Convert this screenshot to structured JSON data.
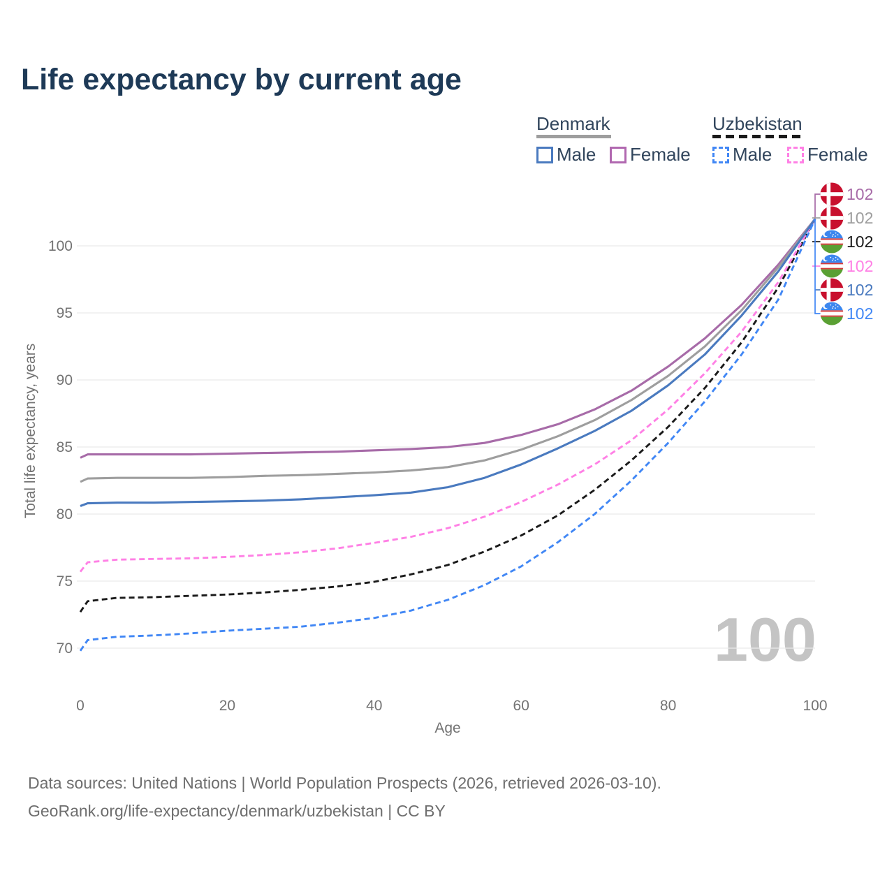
{
  "title": "Life expectancy by current age",
  "legend": {
    "groups": [
      {
        "name": "Denmark",
        "line_style": "solid",
        "line_color": "#9e9e9e",
        "items": [
          {
            "label": "Male",
            "color": "#4a7abf",
            "dashed": false
          },
          {
            "label": "Female",
            "color": "#b168b0",
            "dashed": false
          }
        ]
      },
      {
        "name": "Uzbekistan",
        "line_style": "dashed",
        "line_color": "#1a1a1a",
        "items": [
          {
            "label": "Male",
            "color": "#4187f5",
            "dashed": true
          },
          {
            "label": "Female",
            "color": "#ff80e5",
            "dashed": true
          }
        ]
      }
    ]
  },
  "watermark": "100",
  "footer": {
    "line1": "Data sources: United Nations | World Population Prospects (2026, retrieved 2026-03-10).",
    "line2": "GeoRank.org/life-expectancy/denmark/uzbekistan | CC BY"
  },
  "chart_data": {
    "type": "line",
    "title": "Life expectancy by current age",
    "xlabel": "Age",
    "ylabel": "Total life expectancy, years",
    "xlim": [
      0,
      100
    ],
    "ylim": [
      68,
      103
    ],
    "xticks": [
      0,
      20,
      40,
      60,
      80,
      100
    ],
    "yticks": [
      70,
      75,
      80,
      85,
      90,
      95,
      100
    ],
    "grid": "horizontal",
    "legend_position": "top-right",
    "x": [
      0,
      1,
      5,
      10,
      15,
      20,
      25,
      30,
      35,
      40,
      45,
      50,
      55,
      60,
      65,
      70,
      75,
      80,
      85,
      90,
      95,
      100
    ],
    "series": [
      {
        "name": "Denmark Female",
        "country": "Denmark",
        "sex": "Female",
        "color": "#a76ba8",
        "dashed": false,
        "flag": "denmark",
        "end_label": "102",
        "values": [
          84.2,
          84.45,
          84.45,
          84.45,
          84.45,
          84.5,
          84.55,
          84.6,
          84.65,
          84.75,
          84.85,
          85.0,
          85.3,
          85.9,
          86.7,
          87.8,
          89.2,
          91.0,
          93.1,
          95.6,
          98.6,
          102
        ]
      },
      {
        "name": "Denmark Both sexes",
        "country": "Denmark",
        "sex": "Both",
        "color": "#9e9e9e",
        "dashed": false,
        "flag": "denmark",
        "end_label": "102",
        "values": [
          82.4,
          82.65,
          82.7,
          82.7,
          82.7,
          82.75,
          82.85,
          82.9,
          83.0,
          83.1,
          83.25,
          83.5,
          84.0,
          84.8,
          85.8,
          87.0,
          88.5,
          90.3,
          92.5,
          95.2,
          98.4,
          102
        ]
      },
      {
        "name": "Uzbekistan Both sexes",
        "country": "Uzbekistan",
        "sex": "Both",
        "color": "#1a1a1a",
        "dashed": true,
        "flag": "uzbekistan",
        "end_label": "102",
        "values": [
          72.7,
          73.5,
          73.75,
          73.8,
          73.9,
          74.0,
          74.15,
          74.35,
          74.6,
          74.95,
          75.5,
          76.2,
          77.2,
          78.4,
          79.9,
          81.8,
          84.0,
          86.5,
          89.4,
          92.8,
          96.9,
          102
        ]
      },
      {
        "name": "Uzbekistan Female",
        "country": "Uzbekistan",
        "sex": "Female",
        "color": "#ff80e5",
        "dashed": true,
        "flag": "uzbekistan",
        "end_label": "102",
        "values": [
          75.7,
          76.4,
          76.6,
          76.65,
          76.7,
          76.8,
          76.95,
          77.15,
          77.45,
          77.85,
          78.3,
          78.95,
          79.8,
          80.9,
          82.2,
          83.7,
          85.5,
          87.8,
          90.5,
          93.6,
          97.3,
          102
        ]
      },
      {
        "name": "Denmark Male",
        "country": "Denmark",
        "sex": "Male",
        "color": "#4a7abf",
        "dashed": false,
        "flag": "denmark",
        "end_label": "102",
        "values": [
          80.6,
          80.8,
          80.85,
          80.85,
          80.9,
          80.95,
          81.0,
          81.1,
          81.25,
          81.4,
          81.6,
          82.0,
          82.7,
          83.7,
          84.9,
          86.2,
          87.7,
          89.6,
          91.9,
          94.8,
          98.1,
          102
        ]
      },
      {
        "name": "Uzbekistan Male",
        "country": "Uzbekistan",
        "sex": "Male",
        "color": "#4187f5",
        "dashed": true,
        "flag": "uzbekistan",
        "end_label": "102",
        "values": [
          69.8,
          70.6,
          70.85,
          70.95,
          71.1,
          71.3,
          71.45,
          71.6,
          71.9,
          72.25,
          72.8,
          73.6,
          74.7,
          76.1,
          77.9,
          80.0,
          82.5,
          85.3,
          88.4,
          91.9,
          96.0,
          102
        ]
      }
    ]
  }
}
